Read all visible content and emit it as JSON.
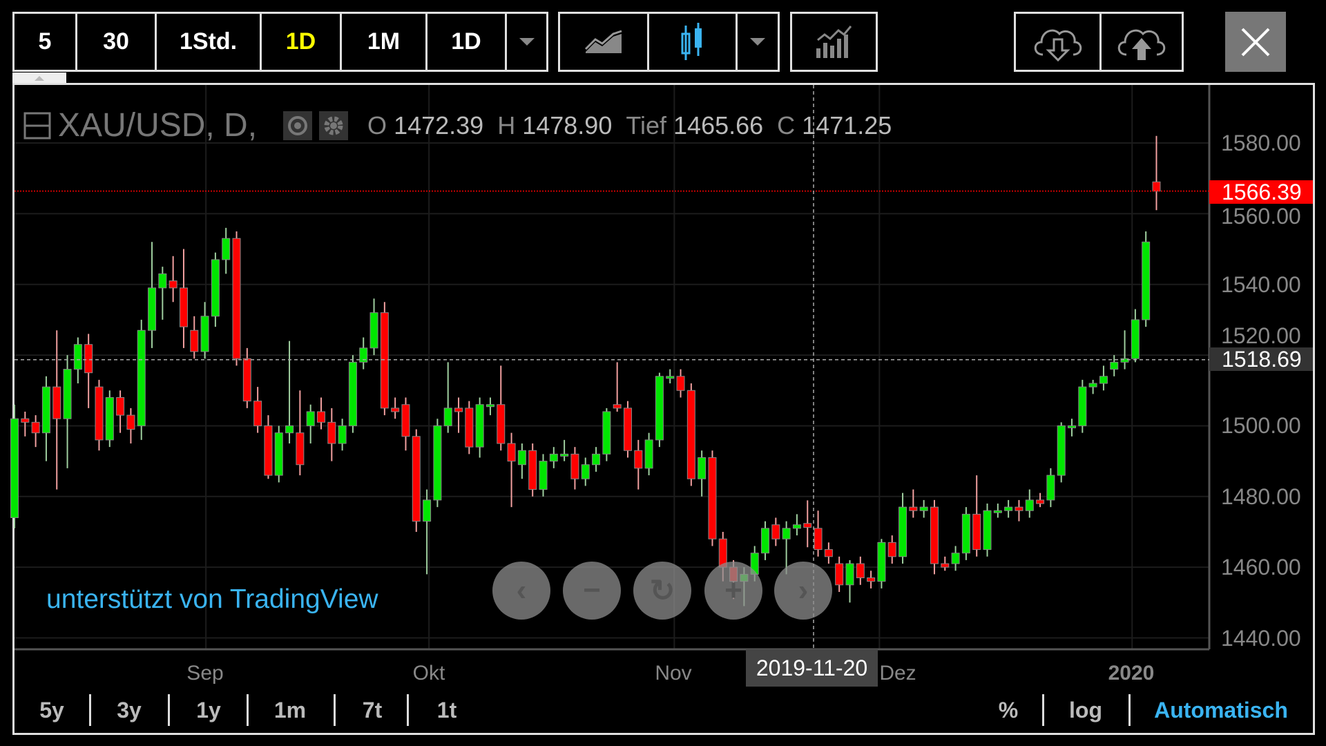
{
  "toolbar": {
    "intervals": [
      "5",
      "30",
      "1Std.",
      "1D",
      "1M",
      "1D"
    ],
    "active_interval": "1D",
    "active_color": "#ffff00"
  },
  "legend": {
    "symbol": "XAU/USD, D,",
    "o_label": "O",
    "o": "1472.39",
    "h_label": "H",
    "h": "1478.90",
    "l_label": "Tief",
    "l": "1465.66",
    "c_label": "C",
    "c": "1471.25"
  },
  "price_axis": {
    "ticks": [
      "1580.00",
      "1560.00",
      "1540.00",
      "1520.00",
      "1500.00",
      "1480.00",
      "1460.00",
      "1440.00"
    ],
    "last_price": "1566.39",
    "last_price_color": "#ff0000",
    "crosshair_price": "1518.69"
  },
  "time_axis": {
    "ticks": [
      "Sep",
      "Okt",
      "Nov",
      "Dez",
      "2020"
    ],
    "crosshair_date": "2019-11-20"
  },
  "watermark": "unterstützt von TradingView",
  "bottom_bar": {
    "ranges": [
      "5y",
      "3y",
      "1y",
      "1m",
      "7t",
      "1t"
    ],
    "right": [
      "%",
      "log",
      "Automatisch"
    ],
    "accent": "#3ab4f2"
  },
  "icons": [
    "line-chart-icon",
    "candlestick-icon",
    "indicators-icon",
    "cloud-download-icon",
    "cloud-upload-icon",
    "close-icon",
    "eye-icon",
    "gear-icon",
    "collapse-icon"
  ],
  "chart_data": {
    "type": "candlestick",
    "ylim": [
      1440,
      1580
    ],
    "up_color": "#00e600",
    "down_color": "#ff0000",
    "x_ticks": [
      {
        "label": "Sep",
        "at": 18.1
      },
      {
        "label": "Okt",
        "at": 39.2
      },
      {
        "label": "Nov",
        "at": 62.4
      },
      {
        "label": "Dez",
        "at": 81.8
      },
      {
        "label": "2020",
        "at": 105.7
      }
    ],
    "candles": [
      [
        1474,
        1506,
        1471,
        1502
      ],
      [
        1502,
        1504,
        1497,
        1501
      ],
      [
        1501,
        1503,
        1494,
        1498
      ],
      [
        1498,
        1514,
        1490,
        1511
      ],
      [
        1511,
        1527,
        1482,
        1502
      ],
      [
        1502,
        1520,
        1488,
        1516
      ],
      [
        1516,
        1525,
        1512,
        1523
      ],
      [
        1523,
        1526,
        1505,
        1515
      ],
      [
        1511,
        1513,
        1493,
        1496
      ],
      [
        1496,
        1510,
        1494,
        1508
      ],
      [
        1508,
        1510,
        1498,
        1503
      ],
      [
        1503,
        1505,
        1495,
        1499
      ],
      [
        1500,
        1530,
        1496,
        1527
      ],
      [
        1527,
        1552,
        1522,
        1539
      ],
      [
        1539,
        1545,
        1530,
        1543
      ],
      [
        1541,
        1548,
        1535,
        1539
      ],
      [
        1539,
        1550,
        1522,
        1528
      ],
      [
        1527,
        1531,
        1519,
        1521
      ],
      [
        1521,
        1535,
        1519,
        1531
      ],
      [
        1531,
        1549,
        1528,
        1547
      ],
      [
        1547,
        1556,
        1543,
        1553
      ],
      [
        1553,
        1555,
        1517,
        1519
      ],
      [
        1519,
        1522,
        1505,
        1507
      ],
      [
        1507,
        1511,
        1498,
        1500
      ],
      [
        1500,
        1503,
        1485,
        1486
      ],
      [
        1486,
        1500,
        1484,
        1498
      ],
      [
        1498,
        1524,
        1495,
        1500
      ],
      [
        1498,
        1510,
        1486,
        1489
      ],
      [
        1500,
        1506,
        1495,
        1504
      ],
      [
        1504,
        1508,
        1499,
        1501
      ],
      [
        1501,
        1505,
        1490,
        1495
      ],
      [
        1495,
        1502,
        1493,
        1500
      ],
      [
        1500,
        1520,
        1498,
        1518
      ],
      [
        1518,
        1525,
        1516,
        1522
      ],
      [
        1522,
        1536,
        1520,
        1532
      ],
      [
        1532,
        1535,
        1503,
        1505
      ],
      [
        1505,
        1508,
        1502,
        1504
      ],
      [
        1506,
        1508,
        1493,
        1497
      ],
      [
        1497,
        1499,
        1470,
        1473
      ],
      [
        1473,
        1482,
        1458,
        1479
      ],
      [
        1479,
        1502,
        1477,
        1500
      ],
      [
        1500,
        1518,
        1498,
        1505
      ],
      [
        1505,
        1508,
        1498,
        1504
      ],
      [
        1505,
        1507,
        1492,
        1494
      ],
      [
        1494,
        1508,
        1491,
        1506
      ],
      [
        1506,
        1508,
        1503,
        1506
      ],
      [
        1506,
        1517,
        1493,
        1495
      ],
      [
        1495,
        1498,
        1477,
        1490
      ],
      [
        1489,
        1495,
        1485,
        1493
      ],
      [
        1493,
        1495,
        1480,
        1482
      ],
      [
        1482,
        1492,
        1480,
        1490
      ],
      [
        1490,
        1494,
        1488,
        1492
      ],
      [
        1492,
        1496,
        1490,
        1492
      ],
      [
        1492,
        1494,
        1482,
        1485
      ],
      [
        1485,
        1491,
        1483,
        1489
      ],
      [
        1489,
        1494,
        1487,
        1492
      ],
      [
        1492,
        1505,
        1490,
        1504
      ],
      [
        1506,
        1518,
        1504,
        1505
      ],
      [
        1505,
        1507,
        1491,
        1493
      ],
      [
        1493,
        1496,
        1482,
        1488
      ],
      [
        1488,
        1498,
        1486,
        1496
      ],
      [
        1496,
        1515,
        1494,
        1514
      ],
      [
        1514,
        1516,
        1512,
        1514
      ],
      [
        1514,
        1516,
        1508,
        1510
      ],
      [
        1510,
        1512,
        1483,
        1485
      ],
      [
        1485,
        1493,
        1480,
        1491
      ],
      [
        1491,
        1493,
        1466,
        1468
      ],
      [
        1468,
        1470,
        1456,
        1460
      ],
      [
        1460,
        1462,
        1451,
        1456
      ],
      [
        1456,
        1460,
        1449,
        1458
      ],
      [
        1458,
        1466,
        1456,
        1464
      ],
      [
        1464,
        1473,
        1462,
        1471
      ],
      [
        1472,
        1474,
        1466,
        1468
      ],
      [
        1468,
        1473,
        1458,
        1471
      ],
      [
        1471,
        1475,
        1469,
        1472
      ],
      [
        1472.39,
        1478.9,
        1465.66,
        1471.25
      ],
      [
        1471,
        1476,
        1463,
        1465
      ],
      [
        1465,
        1467,
        1461,
        1463
      ],
      [
        1461,
        1463,
        1453,
        1455
      ],
      [
        1455,
        1462,
        1450,
        1461
      ],
      [
        1461,
        1463,
        1455,
        1457
      ],
      [
        1457,
        1459,
        1454,
        1456
      ],
      [
        1456,
        1468,
        1454,
        1467
      ],
      [
        1467,
        1469,
        1461,
        1463
      ],
      [
        1463,
        1481,
        1461,
        1477
      ],
      [
        1477,
        1482,
        1474,
        1476
      ],
      [
        1476,
        1479,
        1474,
        1477
      ],
      [
        1477,
        1479,
        1458,
        1461
      ],
      [
        1461,
        1463,
        1459,
        1460
      ],
      [
        1461,
        1466,
        1459,
        1464
      ],
      [
        1464,
        1477,
        1462,
        1475
      ],
      [
        1475,
        1486,
        1463,
        1465
      ],
      [
        1465,
        1478,
        1463,
        1476
      ],
      [
        1476,
        1478,
        1474,
        1476
      ],
      [
        1476,
        1479,
        1474,
        1477
      ],
      [
        1477,
        1479,
        1473,
        1476
      ],
      [
        1476,
        1482,
        1474,
        1479
      ],
      [
        1479,
        1481,
        1477,
        1478
      ],
      [
        1479,
        1488,
        1477,
        1486
      ],
      [
        1486,
        1501,
        1484,
        1500
      ],
      [
        1500,
        1502,
        1497,
        1500
      ],
      [
        1500,
        1513,
        1498,
        1511
      ],
      [
        1511,
        1513,
        1509,
        1512
      ],
      [
        1512,
        1517,
        1510,
        1514
      ],
      [
        1516,
        1520,
        1514,
        1518
      ],
      [
        1518,
        1527,
        1516,
        1519
      ],
      [
        1519,
        1533,
        1518,
        1530
      ],
      [
        1530,
        1555,
        1528,
        1552
      ],
      [
        1569,
        1582,
        1561,
        1566.39
      ]
    ]
  }
}
